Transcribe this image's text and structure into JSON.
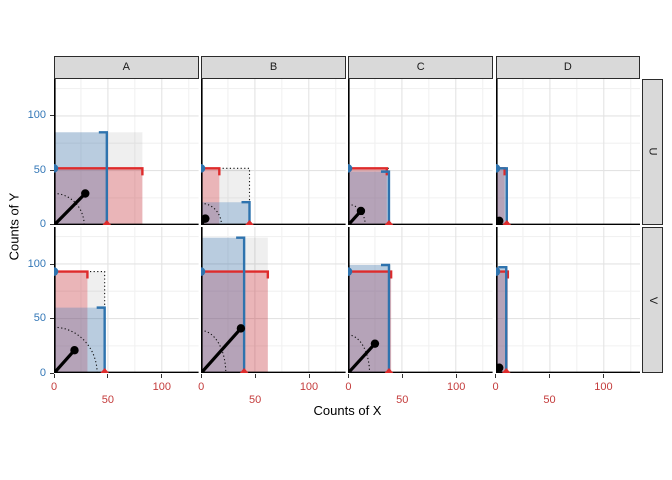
{
  "chart_data": {
    "type": "faceted rect-and-segment plot (2x4 facet grid)",
    "facet_columns": [
      "A",
      "B",
      "C",
      "D"
    ],
    "facet_rows": [
      "U",
      "V"
    ],
    "x_axis": {
      "title": "Counts of X",
      "ticks": [
        "0",
        "50",
        "100"
      ],
      "tick_values": [
        0,
        50,
        100
      ],
      "minor_gridlines": [
        25,
        75,
        125
      ],
      "range": [
        0,
        134
      ],
      "label_color": "#C43C3C",
      "label_dodge": "0 and 100 on first row, 50 on second row"
    },
    "y_axis": {
      "title": "Counts of Y",
      "ticks": [
        "0",
        "50",
        "100"
      ],
      "tick_values": [
        0,
        50,
        100
      ],
      "minor_gridlines": [
        25,
        75,
        125
      ],
      "range": [
        0,
        134
      ],
      "label_color": "#3377B7"
    },
    "colors": {
      "red_line": "#DE2B2B",
      "blue_line": "#2E73AE",
      "red_fill": "rgba(223,45,55,0.30)",
      "blue_fill": "rgba(59,124,184,0.30)",
      "gray_fill": "rgba(40,40,40,0.075)",
      "axis_line": "#000000",
      "grid_major": "#E3E3E3",
      "grid_minor": "#F1F1F1",
      "strip_fill": "#D9D9D9"
    },
    "panels": [
      {
        "col": "A",
        "row": "U",
        "red_rect": [
          82,
          52
        ],
        "blue_rect": [
          49,
          85
        ],
        "segment_end": [
          29,
          29
        ],
        "arc_intercepts": [
          28,
          29
        ]
      },
      {
        "col": "B",
        "row": "U",
        "red_rect": [
          17,
          52
        ],
        "blue_rect": [
          45,
          21
        ],
        "segment_end": [
          4,
          6
        ],
        "arc_intercepts": [
          19,
          20
        ]
      },
      {
        "col": "C",
        "row": "U",
        "red_rect": [
          36,
          52
        ],
        "blue_rect": [
          38,
          49
        ],
        "segment_end": [
          12,
          13
        ],
        "arc_intercepts": [
          16,
          19
        ]
      },
      {
        "col": "D",
        "row": "U",
        "red_rect": [
          8,
          52
        ],
        "blue_rect": [
          10,
          52
        ],
        "segment_end": [
          3,
          4
        ],
        "arc_intercepts": [
          5,
          5
        ]
      },
      {
        "col": "A",
        "row": "V",
        "red_rect": [
          31,
          93
        ],
        "blue_rect": [
          47,
          60
        ],
        "segment_end": [
          19,
          21
        ],
        "arc_intercepts": [
          40,
          42
        ]
      },
      {
        "col": "B",
        "row": "V",
        "red_rect": [
          62,
          93
        ],
        "blue_rect": [
          40,
          124
        ],
        "segment_end": [
          37,
          41
        ],
        "arc_intercepts": [
          23,
          39
        ]
      },
      {
        "col": "C",
        "row": "V",
        "red_rect": [
          40,
          93
        ],
        "blue_rect": [
          38,
          99
        ],
        "segment_end": [
          25,
          27
        ],
        "arc_intercepts": [
          20,
          35
        ]
      },
      {
        "col": "D",
        "row": "V",
        "red_rect": [
          11,
          93
        ],
        "blue_rect": [
          9.5,
          97
        ],
        "segment_end": [
          3,
          5
        ],
        "arc_intercepts": [
          5,
          6
        ]
      }
    ],
    "notes": "gray rect = bounding box of red and blue rects; dotted rect = blue width x red height; blue half-disc marker at (0, red height); red triangle marker at (blue width, 0); black segment from origin to segment_end"
  }
}
